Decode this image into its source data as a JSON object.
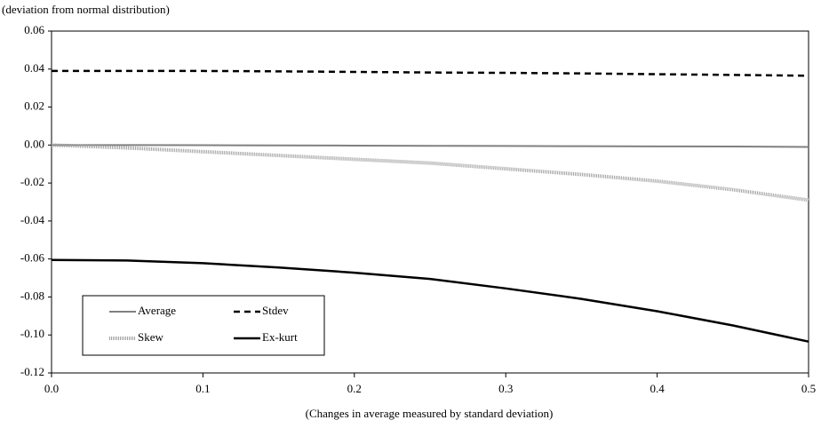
{
  "chart_data": {
    "type": "line",
    "y_label": "(deviation from normal distribution)",
    "x_label": "(Changes in average measured by standard deviation)",
    "x": [
      0,
      0.05,
      0.1,
      0.15,
      0.2,
      0.25,
      0.3,
      0.35,
      0.4,
      0.45,
      0.5
    ],
    "series": [
      {
        "name": "Average",
        "color": "#808080",
        "style": "solid",
        "values": [
          0,
          0,
          -0.0001,
          -0.0002,
          -0.0003,
          -0.0004,
          -0.0005,
          -0.0006,
          -0.0007,
          -0.0008,
          -0.001
        ]
      },
      {
        "name": "Stdev",
        "color": "#000000",
        "style": "dashed",
        "values": [
          0.039,
          0.039,
          0.039,
          0.0388,
          0.0385,
          0.0382,
          0.038,
          0.0377,
          0.0373,
          0.0369,
          0.0365
        ]
      },
      {
        "name": "Skew",
        "color": "#a0a0a0",
        "style": "dotted",
        "values": [
          0,
          -0.0015,
          -0.0035,
          -0.0055,
          -0.0075,
          -0.0095,
          -0.0125,
          -0.0155,
          -0.019,
          -0.0235,
          -0.029
        ]
      },
      {
        "name": "Ex-kurt",
        "color": "#000000",
        "style": "thick",
        "values": [
          -0.0605,
          -0.0608,
          -0.0622,
          -0.0645,
          -0.0672,
          -0.0705,
          -0.0755,
          -0.081,
          -0.0875,
          -0.095,
          -0.1035
        ]
      }
    ],
    "xlim": [
      0,
      0.5
    ],
    "xticks": [
      {
        "value": 0,
        "label": "0.0"
      },
      0.1,
      0.2,
      0.3,
      0.4,
      0.5
    ],
    "ylim": [
      -0.12,
      0.06
    ],
    "yticks": [
      0.06,
      0.04,
      0.02,
      {
        "value": 0,
        "label": "0.00"
      },
      -0.02,
      -0.04,
      -0.06,
      -0.08,
      {
        "value": -0.1,
        "label": "-0.10"
      },
      -0.12
    ],
    "legend": "bottom-left"
  }
}
